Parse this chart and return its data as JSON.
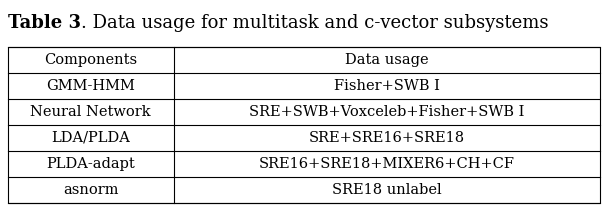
{
  "title_bold": "Table 3",
  "title_normal": ". Data usage for multitask and c-vector subsystems",
  "col_headers": [
    "Components",
    "Data usage"
  ],
  "rows": [
    [
      "GMM-HMM",
      "Fisher+SWB I"
    ],
    [
      "Neural Network",
      "SRE+SWB+Voxceleb+Fisher+SWB I"
    ],
    [
      "LDA/PLDA",
      "SRE+SRE16+SRE18"
    ],
    [
      "PLDA-adapt",
      "SRE16+SRE18+MIXER6+CH+CF"
    ],
    [
      "asnorm",
      "SRE18 unlabel"
    ]
  ],
  "col_split": 0.28,
  "figsize": [
    6.08,
    2.08
  ],
  "dpi": 100,
  "font_size": 10.5,
  "title_font_size": 13,
  "background": "#ffffff",
  "line_color": "#000000"
}
